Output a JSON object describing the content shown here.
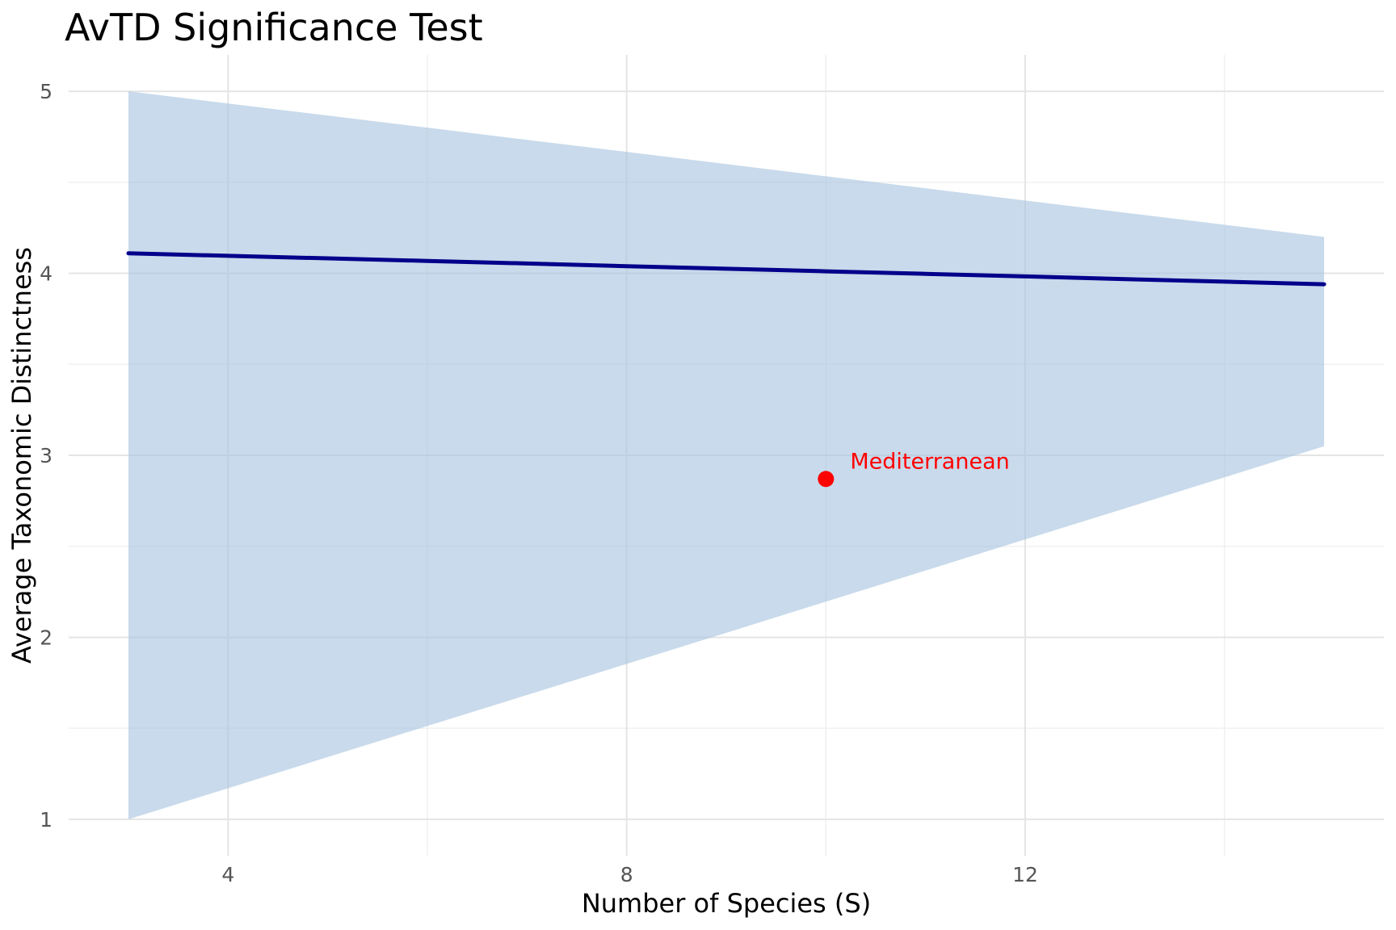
{
  "chart_data": {
    "type": "area",
    "subtype": "funnel-significance-plot",
    "title": "AvTD Significance Test",
    "xlabel": "Number of Species (S)",
    "ylabel": "Average Taxonomic Distinctness",
    "xlim": [
      2.4,
      15.6
    ],
    "ylim": [
      0.8,
      5.2
    ],
    "x_ticks": [
      4,
      8,
      12
    ],
    "x_tick_labels": [
      "4",
      "8",
      "12"
    ],
    "x_minor_ticks": [
      6,
      10,
      14
    ],
    "y_ticks": [
      1,
      2,
      3,
      4,
      5
    ],
    "y_tick_labels": [
      "1",
      "2",
      "3",
      "4",
      "5"
    ],
    "y_minor_ticks": [
      1.5,
      2.5,
      3.5,
      4.5
    ],
    "grid": true,
    "legend": false,
    "x": [
      3,
      4,
      5,
      6,
      7,
      8,
      9,
      10,
      11,
      12,
      13,
      14,
      15
    ],
    "series": [
      {
        "name": "expected_mean",
        "role": "line",
        "values": [
          4.11,
          4.096,
          4.082,
          4.068,
          4.054,
          4.039,
          4.025,
          4.011,
          3.997,
          3.983,
          3.968,
          3.954,
          3.94
        ]
      },
      {
        "name": "confidence_upper",
        "role": "ribbon-upper",
        "values": [
          5.0,
          4.933,
          4.867,
          4.8,
          4.733,
          4.667,
          4.6,
          4.533,
          4.467,
          4.4,
          4.333,
          4.267,
          4.2
        ]
      },
      {
        "name": "confidence_lower",
        "role": "ribbon-lower",
        "values": [
          1.0,
          1.171,
          1.342,
          1.513,
          1.683,
          1.854,
          2.025,
          2.196,
          2.367,
          2.538,
          2.708,
          2.879,
          3.05
        ]
      }
    ],
    "annotations": [
      {
        "label": "Mediterranean",
        "x": 10,
        "y": 2.87
      }
    ]
  },
  "colors": {
    "background": "#FFFFFF",
    "band_fill": "#A7C3DE",
    "band_fill_opacity": 0.62,
    "band_effective": "#C9D8E9",
    "mean_line": "#00008B",
    "point": "#FF0000",
    "annotation_text": "#FF0000",
    "grid_major": "#E4E4E4",
    "grid_minor": "#F0F0F0",
    "title_text": "#000000",
    "axis_title_text": "#000000",
    "tick_text": "#555555"
  }
}
